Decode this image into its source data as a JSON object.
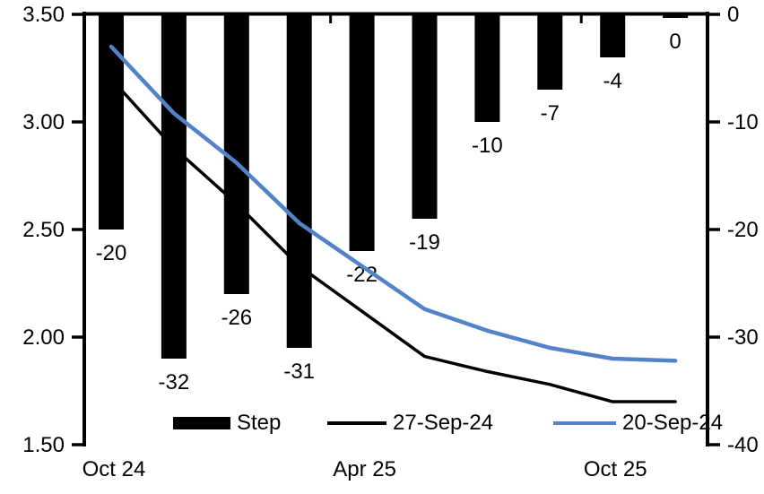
{
  "chart_data": {
    "type": "combo-bar-line",
    "title": "",
    "grid": false,
    "legend_position": "bottom",
    "num_categories": 10,
    "x_axis": {
      "labels": [
        {
          "text": "Oct 24",
          "category_index": 0
        },
        {
          "text": "Apr 25",
          "category_index": 4
        },
        {
          "text": "Oct 25",
          "category_index": 8
        }
      ]
    },
    "left_axis": {
      "ticks": [
        "3.50",
        "3.00",
        "2.50",
        "2.00",
        "1.50"
      ],
      "max": 3.5,
      "min": 1.5
    },
    "right_axis": {
      "ticks": [
        "0",
        "-10",
        "-20",
        "-30",
        "-40"
      ],
      "max": 0,
      "min": -40
    },
    "bar_series": {
      "name": "Step",
      "axis": "right",
      "color": "#000000",
      "values": [
        -20,
        -32,
        -26,
        -31,
        -22,
        -19,
        -10,
        -7,
        -4,
        0
      ],
      "data_labels": [
        "-20",
        "-32",
        "-26",
        "-31",
        "-22",
        "-19",
        "-10",
        "-7",
        "-4",
        "0"
      ]
    },
    "line_series": [
      {
        "name": "27-Sep-24",
        "axis": "left",
        "color": "#000000",
        "stroke_width": 3.5,
        "values": [
          3.2,
          2.88,
          2.62,
          2.33,
          2.12,
          1.91,
          1.84,
          1.78,
          1.7,
          1.7
        ]
      },
      {
        "name": "20-Sep-24",
        "axis": "left",
        "color": "#5282C8",
        "stroke_width": 4.5,
        "values": [
          3.35,
          3.04,
          2.81,
          2.53,
          2.33,
          2.13,
          2.03,
          1.95,
          1.9,
          1.89
        ]
      }
    ],
    "legend": [
      {
        "label": "Step",
        "swatch": "bar",
        "color": "#000000"
      },
      {
        "label": "27-Sep-24",
        "swatch": "line",
        "color": "#000000"
      },
      {
        "label": "20-Sep-24",
        "swatch": "line",
        "color": "#5282C8"
      }
    ]
  }
}
